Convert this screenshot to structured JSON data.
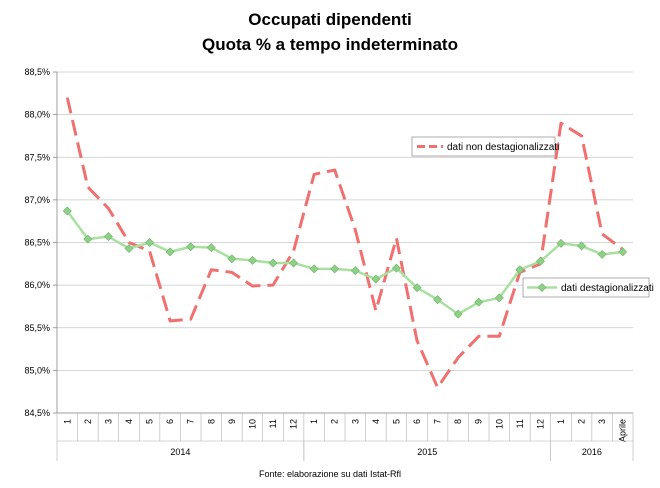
{
  "chart_data": {
    "type": "line",
    "title": "Occupati dipendenti",
    "subtitle": "Quota % a tempo indeterminato",
    "categories": [
      "1",
      "2",
      "3",
      "4",
      "5",
      "6",
      "7",
      "8",
      "9",
      "10",
      "11",
      "12",
      "1",
      "2",
      "3",
      "4",
      "5",
      "6",
      "7",
      "8",
      "9",
      "10",
      "11",
      "12",
      "1",
      "2",
      "3",
      "Aprile"
    ],
    "year_groups": [
      {
        "label": "2014",
        "start": 0,
        "end": 11
      },
      {
        "label": "2015",
        "start": 12,
        "end": 23
      },
      {
        "label": "2016",
        "start": 24,
        "end": 27
      }
    ],
    "y_ticks": [
      "84,5%",
      "85,0%",
      "85,5%",
      "86,0%",
      "86,5%",
      "87,0%",
      "87,5%",
      "88,0%",
      "88,5%"
    ],
    "ylim": [
      84.5,
      88.5
    ],
    "grid": "horizontal",
    "series": [
      {
        "name": "dati non destagionalizzati",
        "color": "#f07070",
        "style": "dashed",
        "values": [
          88.2,
          87.15,
          86.9,
          86.5,
          86.4,
          85.58,
          85.6,
          86.18,
          86.15,
          85.99,
          86.0,
          86.4,
          87.3,
          87.35,
          86.65,
          85.7,
          86.55,
          85.35,
          84.8,
          85.15,
          85.4,
          85.4,
          86.15,
          86.25,
          87.9,
          87.75,
          86.6,
          86.42
        ]
      },
      {
        "name": "dati destagionalizzati",
        "color": "#a8e0a0",
        "marker_color": "#8fd088",
        "style": "solid",
        "values": [
          86.87,
          86.54,
          86.57,
          86.43,
          86.5,
          86.39,
          86.45,
          86.44,
          86.31,
          86.29,
          86.26,
          86.26,
          86.19,
          86.19,
          86.17,
          86.07,
          86.2,
          85.97,
          85.83,
          85.66,
          85.8,
          85.85,
          86.18,
          86.28,
          86.49,
          86.46,
          86.36,
          86.39
        ]
      }
    ],
    "legends": [
      {
        "series": 0,
        "placement": "top-right"
      },
      {
        "series": 1,
        "placement": "middle-right"
      }
    ]
  },
  "source": "Fonte: elaborazione su dati Istat-Rfl"
}
